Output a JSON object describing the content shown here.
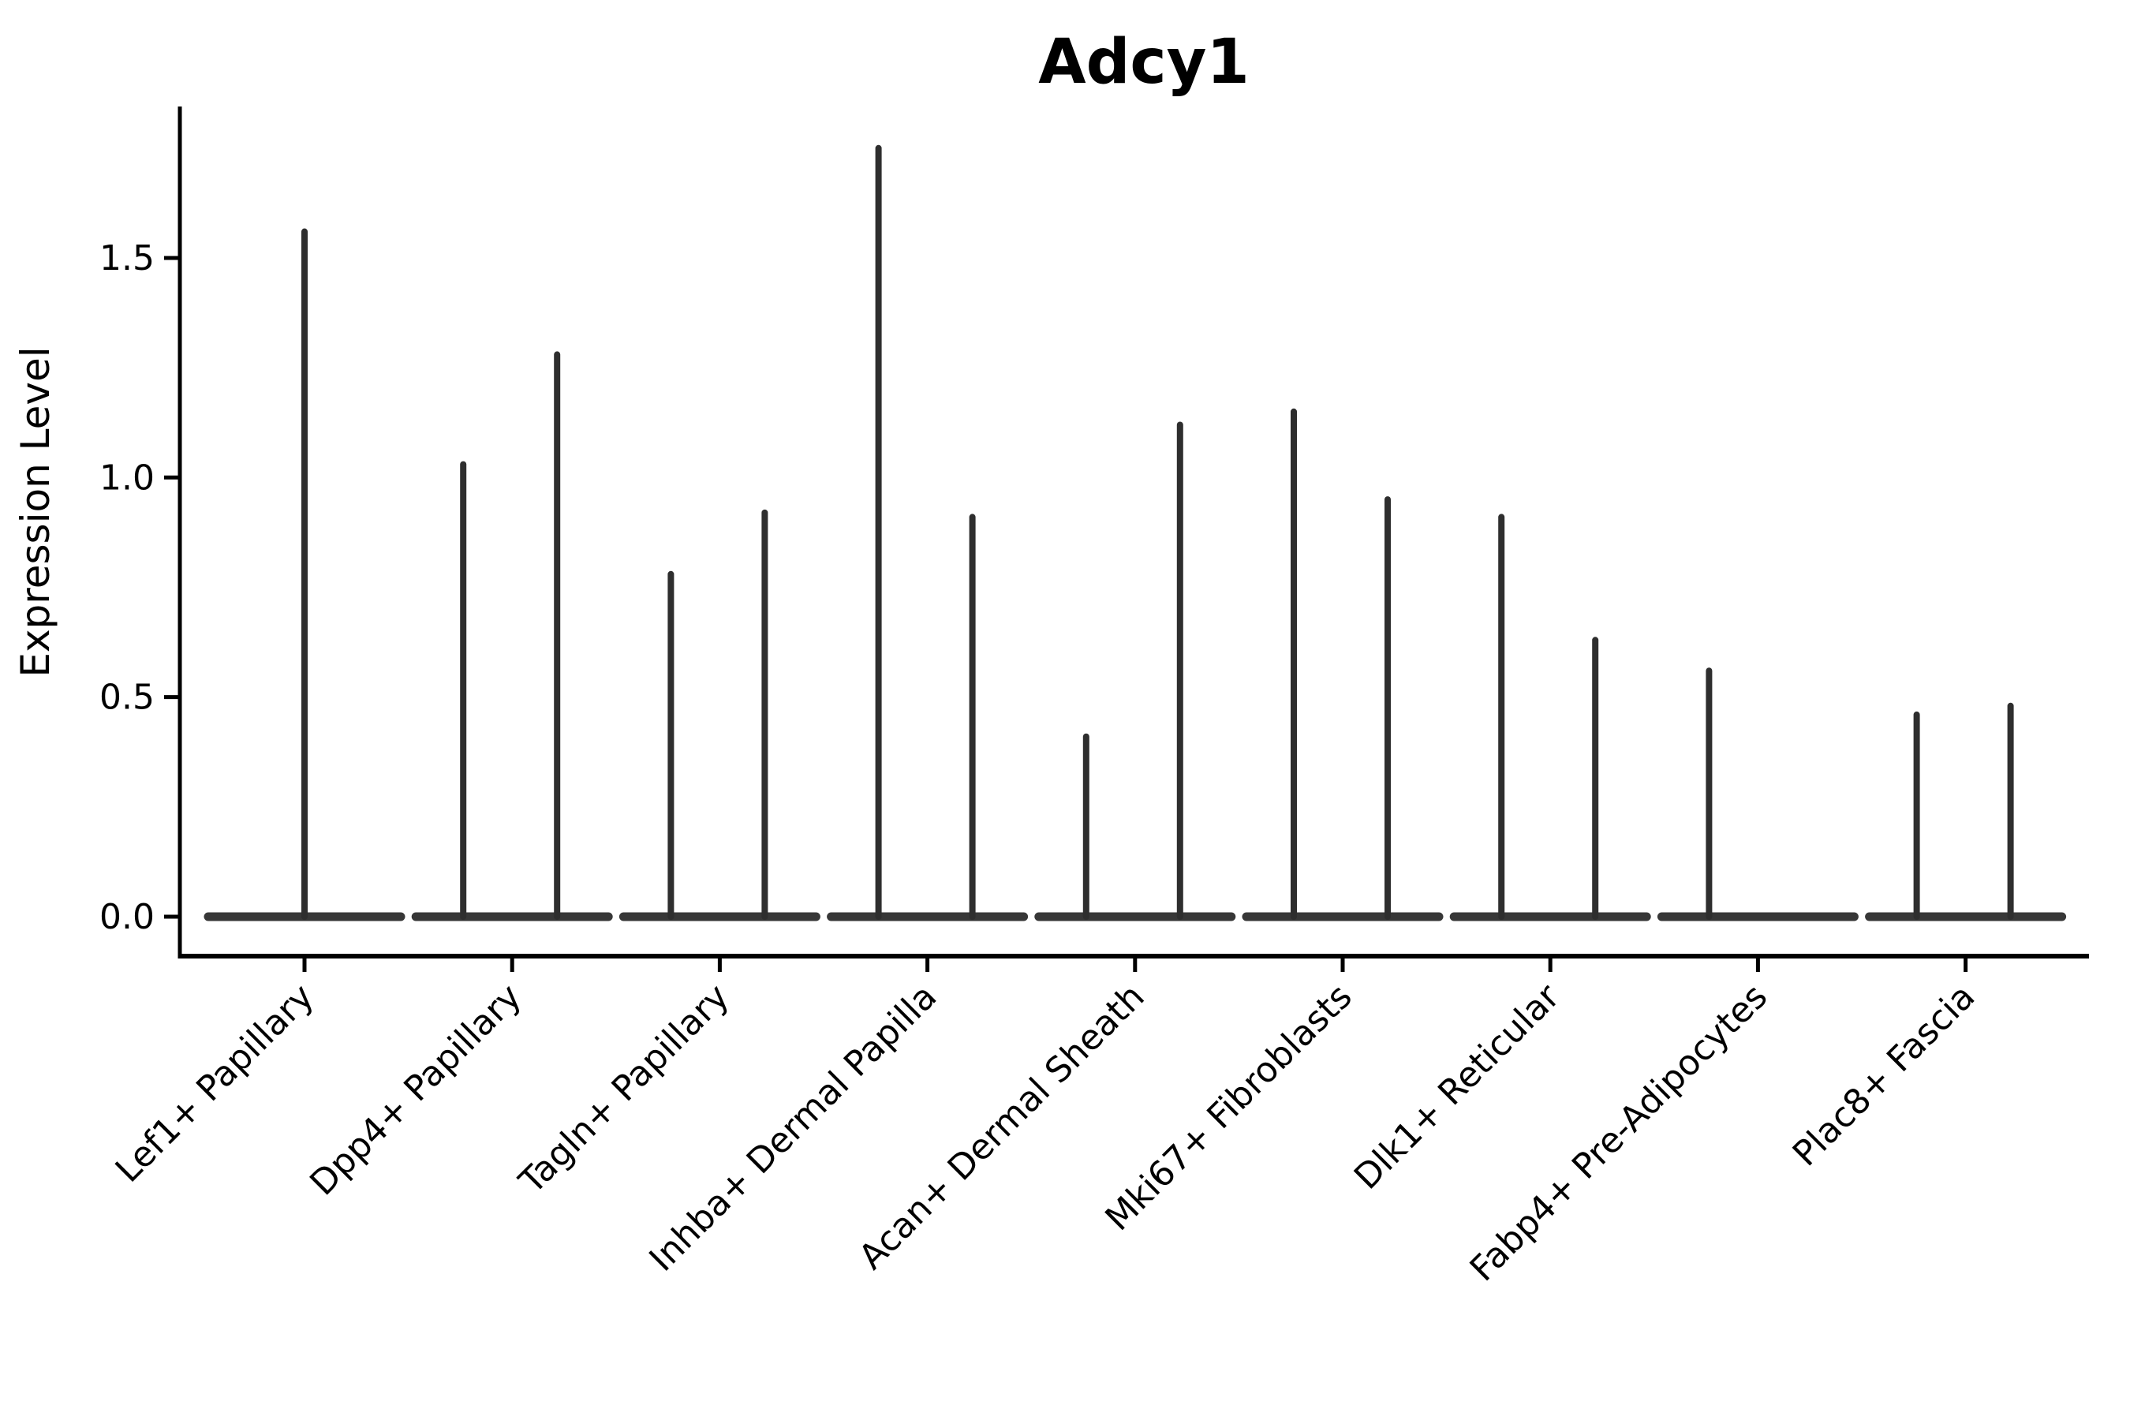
{
  "chart_data": {
    "type": "violin",
    "title": "Adcy1",
    "ylabel": "Expression Level",
    "xlabel": "",
    "grid": false,
    "legend": null,
    "background": "#ffffff",
    "y_ticks": [
      {
        "value": 0.0,
        "label": "0.0"
      },
      {
        "value": 0.5,
        "label": "0.5"
      },
      {
        "value": 1.0,
        "label": "1.0"
      },
      {
        "value": 1.5,
        "label": "1.5"
      }
    ],
    "ylim": [
      -0.09,
      1.85
    ],
    "baseline_value": 0.0,
    "categories": [
      "Lef1+ Papillary",
      "Dpp4+ Papillary",
      "Tagln+ Papillary",
      "Inhba+ Dermal Papilla",
      "Acan+ Dermal Sheath",
      "Mki67+ Fibroblasts",
      "Dlk1+ Reticular",
      "Fabp4+ Pre-Adipocytes",
      "Plac8+ Fascia"
    ],
    "violins": [
      {
        "category": "Lef1+ Papillary",
        "spikes": [
          {
            "position": "center",
            "max": 1.56
          }
        ]
      },
      {
        "category": "Dpp4+ Papillary",
        "spikes": [
          {
            "position": "left",
            "max": 1.03
          },
          {
            "position": "right",
            "max": 1.28
          }
        ]
      },
      {
        "category": "Tagln+ Papillary",
        "spikes": [
          {
            "position": "left",
            "max": 0.78
          },
          {
            "position": "right",
            "max": 0.92
          }
        ]
      },
      {
        "category": "Inhba+ Dermal Papilla",
        "spikes": [
          {
            "position": "left",
            "max": 1.75
          },
          {
            "position": "right",
            "max": 0.91
          }
        ]
      },
      {
        "category": "Acan+ Dermal Sheath",
        "spikes": [
          {
            "position": "left",
            "max": 0.41
          },
          {
            "position": "right",
            "max": 1.12
          }
        ]
      },
      {
        "category": "Mki67+ Fibroblasts",
        "spikes": [
          {
            "position": "left",
            "max": 1.15
          },
          {
            "position": "right",
            "max": 0.95
          }
        ]
      },
      {
        "category": "Dlk1+ Reticular",
        "spikes": [
          {
            "position": "left",
            "max": 0.91
          },
          {
            "position": "right",
            "max": 0.63
          }
        ]
      },
      {
        "category": "Fabp4+ Pre-Adipocytes",
        "spikes": [
          {
            "position": "left",
            "max": 0.56
          }
        ]
      },
      {
        "category": "Plac8+ Fascia",
        "spikes": [
          {
            "position": "left",
            "max": 0.46
          },
          {
            "position": "right",
            "max": 0.48
          }
        ]
      }
    ],
    "colors": {
      "violin": "#2e2e2e",
      "baseline": "#373737",
      "axis": "#000000",
      "text": "#000000",
      "background": "#ffffff"
    }
  }
}
